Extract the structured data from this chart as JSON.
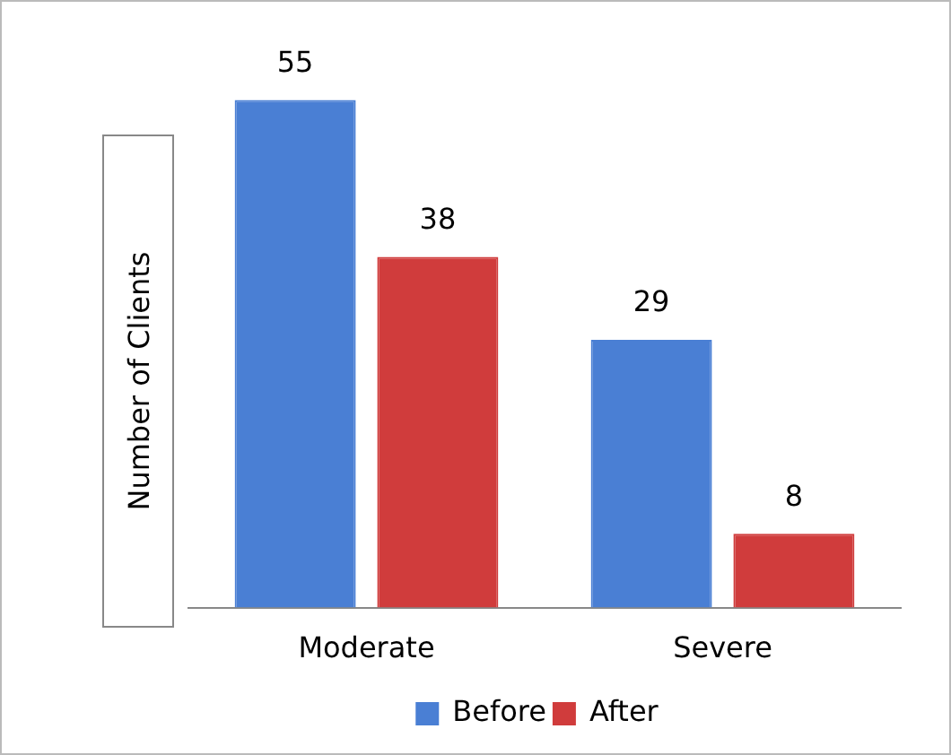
{
  "chart_data": {
    "type": "bar",
    "ylabel": "Number of Clients",
    "categories": [
      "Moderate",
      "Severe"
    ],
    "series": [
      {
        "name": "Before",
        "color": "#4a7fd4",
        "values": [
          55,
          29
        ]
      },
      {
        "name": "After",
        "color": "#d03c3c",
        "values": [
          38,
          8
        ]
      }
    ],
    "relative": false,
    "data_labels": true,
    "legend": "bottom",
    "grid": false
  }
}
